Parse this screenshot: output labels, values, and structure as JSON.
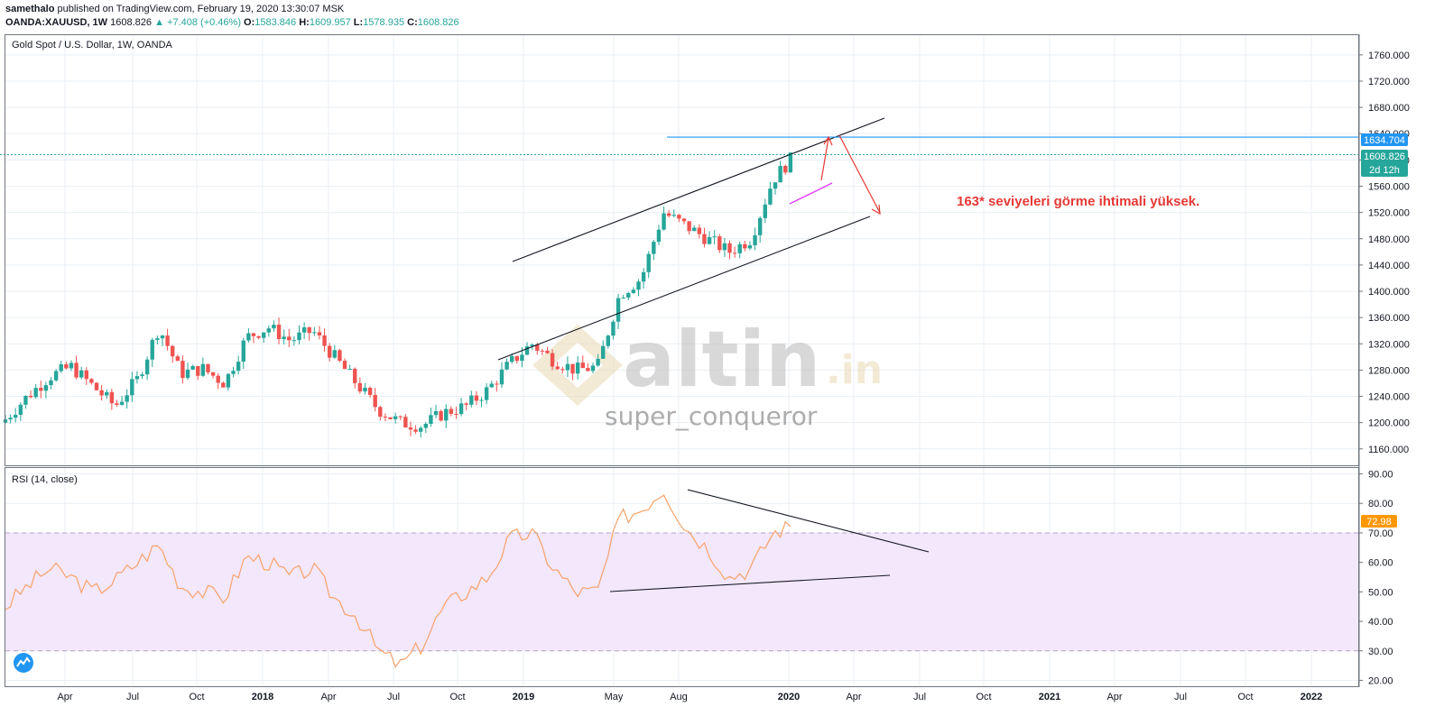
{
  "header": {
    "author": "samethalo",
    "published_text": "published on TradingView.com, February 19, 2020 13:30:07 MSK",
    "symbol": "OANDA:XAUUSD, 1W",
    "last": "1608.826",
    "change_arrow": "▲",
    "change": "+7.408 (+0.46%)",
    "o_label": "O:",
    "o_value": "1583.846",
    "h_label": "H:",
    "h_value": "1609.957",
    "l_label": "L:",
    "l_value": "1578.935",
    "c_label": "C:",
    "c_value": "1608.826"
  },
  "price_pane": {
    "title": "Gold Spot / U.S. Dollar, 1W, OANDA",
    "last_price_label": "1608.826",
    "countdown_label": "2d 12h",
    "hline_label": "1634.704",
    "annotation": "163* seviyeleri görme ihtimali yüksek.",
    "watermark_brand": "altin",
    "watermark_suffix": ".in",
    "watermark_user": "super_conqueror"
  },
  "rsi_pane": {
    "title": "RSI (14, close)",
    "last_value_label": "72.98"
  },
  "colors": {
    "up": "#26a69a",
    "down": "#ef5350",
    "rsi_line": "#f7a26a",
    "rsi_band": "#f3e7fb",
    "hline": "#2196f3",
    "annotation": "#e53935",
    "pink_line": "#e040fb",
    "grid": "#e9eff5"
  },
  "chart_data": [
    {
      "type": "candlestick",
      "title": "Gold Spot / U.S. Dollar, 1W, OANDA",
      "x_tick_labels": [
        "Apr",
        "Jul",
        "Oct",
        "2018",
        "Apr",
        "Jul",
        "Oct",
        "2019",
        "May",
        "Aug",
        "2020",
        "Apr",
        "Jul",
        "Oct",
        "2021",
        "Apr",
        "Jul",
        "Oct",
        "2022"
      ],
      "y_tick_labels": [
        "1760.000",
        "1720.000",
        "1680.000",
        "1640.000",
        "1600.000",
        "1560.000",
        "1520.000",
        "1480.000",
        "1440.000",
        "1400.000",
        "1360.000",
        "1320.000",
        "1280.000",
        "1240.000",
        "1200.000",
        "1160.000"
      ],
      "ylim": [
        1135,
        1790
      ],
      "x": [
        "2017-02",
        "2017-03",
        "2017-04",
        "2017-05",
        "2017-06",
        "2017-07",
        "2017-08",
        "2017-09",
        "2017-10",
        "2017-11",
        "2017-12",
        "2018-01",
        "2018-02",
        "2018-03",
        "2018-04",
        "2018-05",
        "2018-06",
        "2018-07",
        "2018-08",
        "2018-09",
        "2018-10",
        "2018-11",
        "2018-12",
        "2019-01",
        "2019-02",
        "2019-03",
        "2019-04",
        "2019-05",
        "2019-06",
        "2019-07",
        "2019-08",
        "2019-09",
        "2019-10",
        "2019-11",
        "2019-12",
        "2020-01",
        "2020-02"
      ],
      "close": [
        1205,
        1240,
        1270,
        1285,
        1255,
        1225,
        1265,
        1345,
        1275,
        1282,
        1260,
        1330,
        1345,
        1325,
        1340,
        1300,
        1260,
        1220,
        1200,
        1195,
        1215,
        1225,
        1250,
        1290,
        1320,
        1295,
        1280,
        1285,
        1395,
        1420,
        1520,
        1500,
        1480,
        1460,
        1480,
        1570,
        1608
      ],
      "annotations": [
        {
          "type": "channel",
          "label": "rising channel"
        },
        {
          "type": "horizontal_line",
          "value": 1634.704
        },
        {
          "type": "text",
          "text": "163* seviyeleri görme ihtimali yüksek."
        }
      ]
    },
    {
      "type": "line",
      "title": "RSI (14, close)",
      "y_tick_labels": [
        "90.00",
        "80.00",
        "70.00",
        "60.00",
        "50.00",
        "40.00",
        "30.00",
        "20.00"
      ],
      "ylim": [
        18,
        92
      ],
      "band": [
        30,
        70
      ],
      "x": [
        "2017-02",
        "2017-03",
        "2017-04",
        "2017-05",
        "2017-06",
        "2017-07",
        "2017-08",
        "2017-09",
        "2017-10",
        "2017-11",
        "2017-12",
        "2018-01",
        "2018-02",
        "2018-03",
        "2018-04",
        "2018-05",
        "2018-06",
        "2018-07",
        "2018-08",
        "2018-09",
        "2018-10",
        "2018-11",
        "2018-12",
        "2019-01",
        "2019-02",
        "2019-03",
        "2019-04",
        "2019-05",
        "2019-06",
        "2019-07",
        "2019-08",
        "2019-09",
        "2019-10",
        "2019-11",
        "2019-12",
        "2020-01",
        "2020-02"
      ],
      "values": [
        45,
        52,
        58,
        55,
        50,
        54,
        60,
        66,
        52,
        50,
        48,
        62,
        60,
        55,
        58,
        48,
        42,
        30,
        25,
        32,
        45,
        50,
        55,
        68,
        70,
        58,
        50,
        50,
        75,
        78,
        85,
        72,
        65,
        55,
        58,
        70,
        72.98
      ]
    }
  ]
}
